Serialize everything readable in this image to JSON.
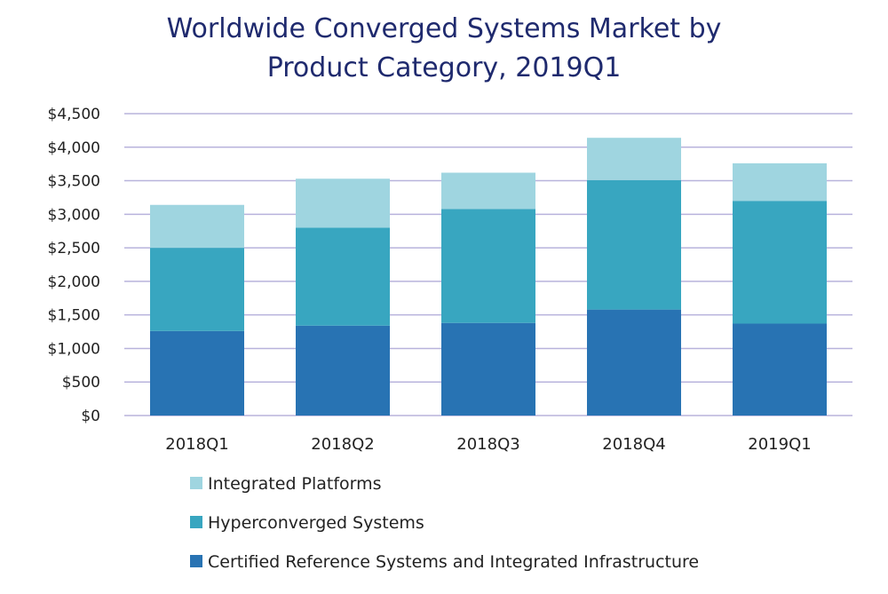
{
  "chart_data": {
    "type": "bar",
    "stacked": true,
    "title_lines": [
      "Worldwide Converged Systems Market by",
      "Product Category, 2019Q1"
    ],
    "categories": [
      "2018Q1",
      "2018Q2",
      "2018Q3",
      "2018Q4",
      "2019Q1"
    ],
    "series": [
      {
        "name": "Certified Reference Systems and Integrated Infrastructure",
        "color": "#2873b3",
        "values": [
          1260,
          1340,
          1380,
          1580,
          1370
        ]
      },
      {
        "name": "Hyperconverged Systems",
        "color": "#38a6c0",
        "values": [
          1240,
          1460,
          1700,
          1930,
          1830
        ]
      },
      {
        "name": "Integrated Platforms",
        "color": "#9fd5e0",
        "values": [
          640,
          730,
          540,
          630,
          560
        ]
      }
    ],
    "y_ticks": [
      0,
      500,
      1000,
      1500,
      2000,
      2500,
      3000,
      3500,
      4000,
      4500
    ],
    "y_tick_labels": [
      "$0",
      "$500",
      "$1,000",
      "$1,500",
      "$2,000",
      "$2,500",
      "$3,000",
      "$3,500",
      "$4,000",
      "$4,500"
    ],
    "ylim": [
      0,
      4500
    ],
    "xlabel": "",
    "ylabel": "",
    "grid": "horizontal",
    "legend_position": "bottom-left",
    "legend_order": [
      "Integrated Platforms",
      "Hyperconverged Systems",
      "Certified Reference Systems and Integrated Infrastructure"
    ]
  }
}
